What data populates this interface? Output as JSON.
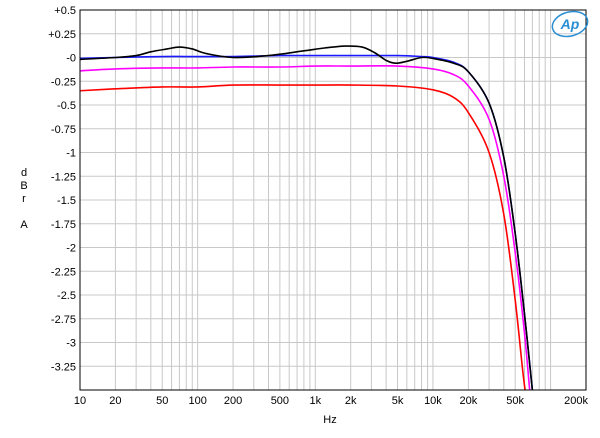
{
  "chart_data": {
    "type": "line",
    "title": "",
    "xlabel": "Hz",
    "ylabel": [
      "d",
      "B",
      "r",
      "",
      "A"
    ],
    "xscale": "log",
    "xlim": [
      10,
      200000
    ],
    "ylim": [
      -3.5,
      0.5
    ],
    "grid": true,
    "legend": "none",
    "logo": "Ap",
    "x_ticks": [
      {
        "v": 10,
        "label": "10"
      },
      {
        "v": 20,
        "label": "20"
      },
      {
        "v": 50,
        "label": "50"
      },
      {
        "v": 100,
        "label": "100"
      },
      {
        "v": 200,
        "label": "200"
      },
      {
        "v": 500,
        "label": "500"
      },
      {
        "v": 1000,
        "label": "1k"
      },
      {
        "v": 2000,
        "label": "2k"
      },
      {
        "v": 5000,
        "label": "5k"
      },
      {
        "v": 10000,
        "label": "10k"
      },
      {
        "v": 20000,
        "label": "20k"
      },
      {
        "v": 50000,
        "label": "50k"
      },
      {
        "v": 200000,
        "label": "200k"
      }
    ],
    "y_ticks": [
      {
        "v": 0.5,
        "label": "+0.5"
      },
      {
        "v": 0.25,
        "label": "+0.25"
      },
      {
        "v": 0,
        "label": "-0"
      },
      {
        "v": -0.25,
        "label": "-0.25"
      },
      {
        "v": -0.5,
        "label": "-0.5"
      },
      {
        "v": -0.75,
        "label": "-0.75"
      },
      {
        "v": -1,
        "label": "-1"
      },
      {
        "v": -1.25,
        "label": "-1.25"
      },
      {
        "v": -1.5,
        "label": "-1.5"
      },
      {
        "v": -1.75,
        "label": "-1.75"
      },
      {
        "v": -2,
        "label": "-2"
      },
      {
        "v": -2.25,
        "label": "-2.25"
      },
      {
        "v": -2.5,
        "label": "-2.5"
      },
      {
        "v": -2.75,
        "label": "-2.75"
      },
      {
        "v": -3,
        "label": "-3"
      },
      {
        "v": -3.25,
        "label": "-3.25"
      }
    ],
    "series": [
      {
        "color": "#1a1aff",
        "points": [
          [
            10,
            -0.01
          ],
          [
            20,
            0.0
          ],
          [
            50,
            0.01
          ],
          [
            100,
            0.01
          ],
          [
            200,
            0.01
          ],
          [
            500,
            0.02
          ],
          [
            1000,
            0.02
          ],
          [
            2000,
            0.02
          ],
          [
            5000,
            0.02
          ],
          [
            8000,
            0.01
          ],
          [
            10000,
            0.0
          ],
          [
            15000,
            -0.05
          ],
          [
            20000,
            -0.15
          ],
          [
            30000,
            -0.48
          ],
          [
            40000,
            -1.05
          ],
          [
            50000,
            -1.85
          ],
          [
            60000,
            -2.7
          ],
          [
            70000,
            -3.5
          ],
          [
            72000,
            -3.65
          ]
        ]
      },
      {
        "color": "#000000",
        "points": [
          [
            10,
            -0.02
          ],
          [
            20,
            0.0
          ],
          [
            30,
            0.02
          ],
          [
            40,
            0.06
          ],
          [
            55,
            0.09
          ],
          [
            70,
            0.11
          ],
          [
            90,
            0.09
          ],
          [
            120,
            0.04
          ],
          [
            200,
            0.0
          ],
          [
            400,
            0.02
          ],
          [
            800,
            0.07
          ],
          [
            1200,
            0.1
          ],
          [
            1800,
            0.12
          ],
          [
            2500,
            0.11
          ],
          [
            3200,
            0.05
          ],
          [
            4000,
            -0.03
          ],
          [
            4800,
            -0.06
          ],
          [
            6000,
            -0.04
          ],
          [
            8000,
            0.0
          ],
          [
            10000,
            -0.01
          ],
          [
            15000,
            -0.06
          ],
          [
            20000,
            -0.15
          ],
          [
            30000,
            -0.48
          ],
          [
            40000,
            -1.05
          ],
          [
            50000,
            -1.85
          ],
          [
            60000,
            -2.7
          ],
          [
            70000,
            -3.5
          ],
          [
            73000,
            -3.65
          ]
        ]
      },
      {
        "color": "#ff00ff",
        "points": [
          [
            10,
            -0.14
          ],
          [
            20,
            -0.12
          ],
          [
            50,
            -0.11
          ],
          [
            100,
            -0.11
          ],
          [
            200,
            -0.1
          ],
          [
            500,
            -0.1
          ],
          [
            1000,
            -0.09
          ],
          [
            2000,
            -0.09
          ],
          [
            5000,
            -0.09
          ],
          [
            10000,
            -0.12
          ],
          [
            15000,
            -0.18
          ],
          [
            20000,
            -0.3
          ],
          [
            30000,
            -0.65
          ],
          [
            40000,
            -1.25
          ],
          [
            50000,
            -2.05
          ],
          [
            60000,
            -2.9
          ],
          [
            68000,
            -3.65
          ]
        ]
      },
      {
        "color": "#ff0000",
        "points": [
          [
            10,
            -0.35
          ],
          [
            20,
            -0.33
          ],
          [
            50,
            -0.31
          ],
          [
            100,
            -0.31
          ],
          [
            200,
            -0.29
          ],
          [
            500,
            -0.29
          ],
          [
            1000,
            -0.29
          ],
          [
            2000,
            -0.29
          ],
          [
            5000,
            -0.3
          ],
          [
            10000,
            -0.34
          ],
          [
            15000,
            -0.42
          ],
          [
            20000,
            -0.58
          ],
          [
            30000,
            -1.0
          ],
          [
            40000,
            -1.65
          ],
          [
            50000,
            -2.55
          ],
          [
            58000,
            -3.3
          ],
          [
            63000,
            -3.65
          ]
        ]
      }
    ]
  }
}
